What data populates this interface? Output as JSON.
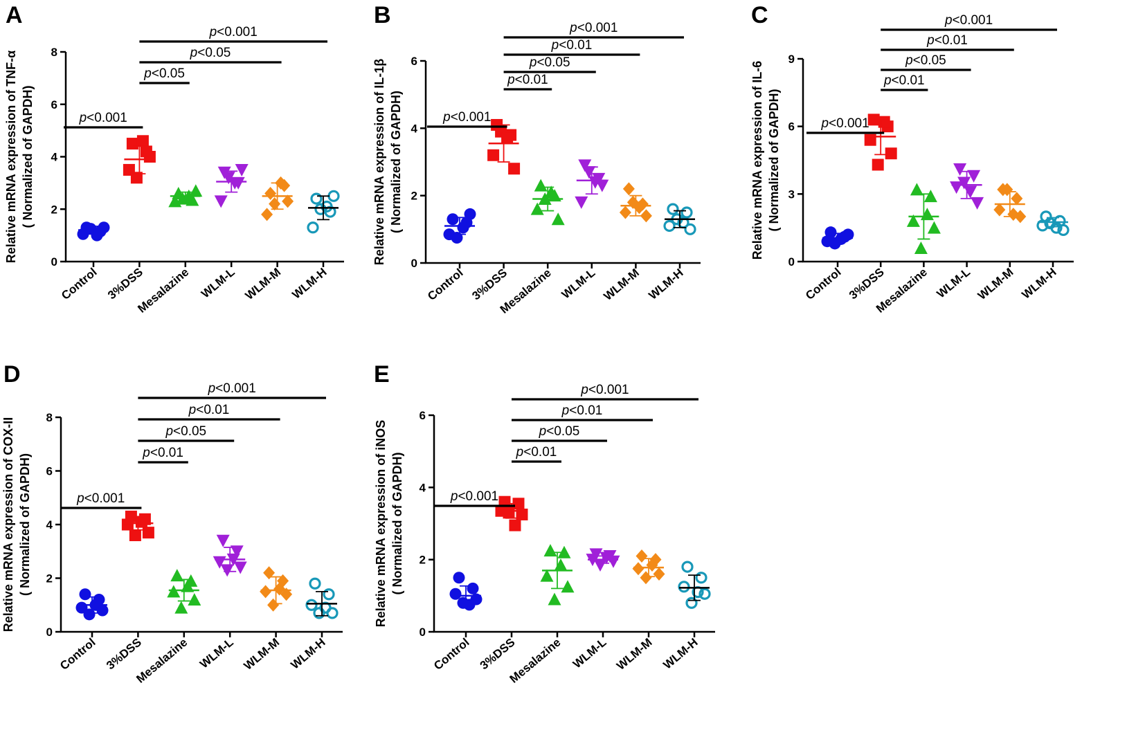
{
  "figure": {
    "groups": [
      "Control",
      "3%DSS",
      "Mesalazine",
      "WLM-L",
      "WLM-M",
      "WLM-H"
    ],
    "group_colors": [
      "#1010e0",
      "#ee1111",
      "#22bb22",
      "#a020d8",
      "#f28a18",
      "#1898b8"
    ],
    "group_markers": [
      "circle",
      "square",
      "triangle-up",
      "triangle-down",
      "diamond",
      "circle-open"
    ],
    "ylabel_suffix": "( Normalized of GAPDH)"
  },
  "chart_data": [
    {
      "type": "scatter",
      "panel_label": "A",
      "ylabel": "Relative mRNA expression of TNF-α",
      "categories": [
        "Control",
        "3%DSS",
        "Mesalazine",
        "WLM-L",
        "WLM-M",
        "WLM-H"
      ],
      "ylim": [
        0,
        8
      ],
      "yticks": [
        0,
        2,
        4,
        6,
        8
      ],
      "series": [
        {
          "name": "Control",
          "points": [
            1.3,
            1.15,
            1.05,
            1.3,
            1.25,
            1.0
          ],
          "mean": 1.2,
          "sd": 0.15
        },
        {
          "name": "3%DSS",
          "points": [
            4.5,
            4.2,
            3.5,
            4.0,
            3.2,
            4.6
          ],
          "mean": 3.9,
          "sd": 0.55
        },
        {
          "name": "Mesalazine",
          "points": [
            2.6,
            2.35,
            2.3,
            2.7,
            2.4,
            2.5
          ],
          "mean": 2.5,
          "sd": 0.15
        },
        {
          "name": "WLM-L",
          "points": [
            3.4,
            3.0,
            2.3,
            3.5,
            3.2,
            3.0
          ],
          "mean": 3.05,
          "sd": 0.4
        },
        {
          "name": "WLM-M",
          "points": [
            2.6,
            2.9,
            1.8,
            2.3,
            2.2,
            3.0
          ],
          "mean": 2.5,
          "sd": 0.5
        },
        {
          "name": "WLM-H",
          "points": [
            2.4,
            1.9,
            1.3,
            2.5,
            2.0,
            2.1
          ],
          "mean": 2.05,
          "sd": 0.45
        }
      ],
      "significance": [
        {
          "from": "Control",
          "to": "3%DSS",
          "label": "p<0.001"
        },
        {
          "from": "3%DSS",
          "to": "Mesalazine",
          "label": "p<0.05"
        },
        {
          "from": "3%DSS",
          "to": "WLM-M",
          "label": "p<0.05"
        },
        {
          "from": "3%DSS",
          "to": "WLM-H",
          "label": "p<0.001"
        }
      ]
    },
    {
      "type": "scatter",
      "panel_label": "B",
      "ylabel": "Relative mRNA expression of IL-1β",
      "categories": [
        "Control",
        "3%DSS",
        "Mesalazine",
        "WLM-L",
        "WLM-M",
        "WLM-H"
      ],
      "ylim": [
        0,
        6
      ],
      "yticks": [
        0,
        2,
        4,
        6
      ],
      "series": [
        {
          "name": "Control",
          "points": [
            1.3,
            1.2,
            0.85,
            1.45,
            0.75,
            1.05
          ],
          "mean": 1.1,
          "sd": 0.25
        },
        {
          "name": "3%DSS",
          "points": [
            4.1,
            3.8,
            3.2,
            2.8,
            3.9,
            3.7
          ],
          "mean": 3.55,
          "sd": 0.55
        },
        {
          "name": "Mesalazine",
          "points": [
            2.3,
            2.0,
            1.6,
            1.3,
            1.9,
            2.1
          ],
          "mean": 1.9,
          "sd": 0.35
        },
        {
          "name": "WLM-L",
          "points": [
            2.9,
            2.5,
            1.8,
            2.3,
            2.7,
            2.4
          ],
          "mean": 2.45,
          "sd": 0.4
        },
        {
          "name": "WLM-M",
          "points": [
            2.2,
            1.75,
            1.5,
            1.4,
            1.8,
            1.65
          ],
          "mean": 1.7,
          "sd": 0.3
        },
        {
          "name": "WLM-H",
          "points": [
            1.6,
            1.5,
            1.1,
            1.0,
            1.3,
            1.2
          ],
          "mean": 1.3,
          "sd": 0.25
        }
      ],
      "significance": [
        {
          "from": "Control",
          "to": "3%DSS",
          "label": "p<0.001"
        },
        {
          "from": "3%DSS",
          "to": "Mesalazine",
          "label": "p<0.01"
        },
        {
          "from": "3%DSS",
          "to": "WLM-L",
          "label": "p<0.05"
        },
        {
          "from": "3%DSS",
          "to": "WLM-M",
          "label": "p<0.01"
        },
        {
          "from": "3%DSS",
          "to": "WLM-H",
          "label": "p<0.001"
        }
      ]
    },
    {
      "type": "scatter",
      "panel_label": "C",
      "ylabel": "Relative mRNA expression of IL-6",
      "categories": [
        "Control",
        "3%DSS",
        "Mesalazine",
        "WLM-L",
        "WLM-M",
        "WLM-H"
      ],
      "ylim": [
        0,
        9
      ],
      "yticks": [
        0,
        3,
        6,
        9
      ],
      "series": [
        {
          "name": "Control",
          "points": [
            1.3,
            1.1,
            0.9,
            1.2,
            0.8,
            1.0
          ],
          "mean": 1.05,
          "sd": 0.2
        },
        {
          "name": "3%DSS",
          "points": [
            6.3,
            6.0,
            5.4,
            4.8,
            4.3,
            6.2
          ],
          "mean": 5.55,
          "sd": 0.8
        },
        {
          "name": "Mesalazine",
          "points": [
            3.2,
            2.9,
            1.8,
            1.5,
            0.6,
            2.1
          ],
          "mean": 2.0,
          "sd": 1.0
        },
        {
          "name": "WLM-L",
          "points": [
            4.1,
            3.8,
            3.3,
            2.6,
            3.5,
            3.1
          ],
          "mean": 3.4,
          "sd": 0.6
        },
        {
          "name": "WLM-M",
          "points": [
            3.2,
            2.8,
            2.3,
            2.0,
            3.2,
            2.1
          ],
          "mean": 2.55,
          "sd": 0.55
        },
        {
          "name": "WLM-H",
          "points": [
            2.0,
            1.8,
            1.6,
            1.4,
            1.7,
            1.5
          ],
          "mean": 1.75,
          "sd": 0.2
        }
      ],
      "significance": [
        {
          "from": "Control",
          "to": "3%DSS",
          "label": "p<0.001"
        },
        {
          "from": "3%DSS",
          "to": "Mesalazine",
          "label": "p<0.01"
        },
        {
          "from": "3%DSS",
          "to": "WLM-L",
          "label": "p<0.05"
        },
        {
          "from": "3%DSS",
          "to": "WLM-M",
          "label": "p<0.01"
        },
        {
          "from": "3%DSS",
          "to": "WLM-H",
          "label": "p<0.001"
        }
      ]
    },
    {
      "type": "scatter",
      "panel_label": "D",
      "ylabel": "Relative mRNA expression of COX-II",
      "categories": [
        "Control",
        "3%DSS",
        "Mesalazine",
        "WLM-L",
        "WLM-M",
        "WLM-H"
      ],
      "ylim": [
        0,
        8
      ],
      "yticks": [
        0,
        2,
        4,
        6,
        8
      ],
      "series": [
        {
          "name": "Control",
          "points": [
            1.4,
            1.2,
            0.9,
            0.8,
            0.65,
            1.0
          ],
          "mean": 1.0,
          "sd": 0.3
        },
        {
          "name": "3%DSS",
          "points": [
            4.3,
            4.2,
            4.0,
            3.7,
            3.6,
            4.1
          ],
          "mean": 4.05,
          "sd": 0.25
        },
        {
          "name": "Mesalazine",
          "points": [
            2.1,
            1.9,
            1.5,
            1.2,
            0.9,
            1.7
          ],
          "mean": 1.55,
          "sd": 0.4
        },
        {
          "name": "WLM-L",
          "points": [
            3.4,
            3.0,
            2.6,
            2.4,
            2.3,
            2.7
          ],
          "mean": 2.7,
          "sd": 0.45
        },
        {
          "name": "WLM-M",
          "points": [
            2.2,
            1.9,
            1.5,
            1.4,
            1.0,
            1.6
          ],
          "mean": 1.55,
          "sd": 0.5
        },
        {
          "name": "WLM-H",
          "points": [
            1.8,
            1.4,
            1.0,
            0.7,
            0.7,
            0.9
          ],
          "mean": 1.05,
          "sd": 0.45
        }
      ],
      "significance": [
        {
          "from": "Control",
          "to": "3%DSS",
          "label": "p<0.001"
        },
        {
          "from": "3%DSS",
          "to": "Mesalazine",
          "label": "p<0.01"
        },
        {
          "from": "3%DSS",
          "to": "WLM-L",
          "label": "p<0.05"
        },
        {
          "from": "3%DSS",
          "to": "WLM-M",
          "label": "p<0.01"
        },
        {
          "from": "3%DSS",
          "to": "WLM-H",
          "label": "p<0.001"
        }
      ]
    },
    {
      "type": "scatter",
      "panel_label": "E",
      "ylabel": "Relative mRNA expression of iNOS",
      "categories": [
        "Control",
        "3%DSS",
        "Mesalazine",
        "WLM-L",
        "WLM-M",
        "WLM-H"
      ],
      "ylim": [
        0,
        6
      ],
      "yticks": [
        0,
        2,
        4,
        6
      ],
      "series": [
        {
          "name": "Control",
          "points": [
            1.5,
            1.2,
            1.05,
            0.9,
            0.8,
            0.75
          ],
          "mean": 1.0,
          "sd": 0.27
        },
        {
          "name": "3%DSS",
          "points": [
            3.6,
            3.55,
            3.35,
            3.25,
            3.3,
            2.95
          ],
          "mean": 3.35,
          "sd": 0.2
        },
        {
          "name": "Mesalazine",
          "points": [
            2.25,
            2.2,
            1.55,
            1.25,
            0.9,
            1.85
          ],
          "mean": 1.7,
          "sd": 0.5
        },
        {
          "name": "WLM-L",
          "points": [
            2.15,
            2.1,
            2.0,
            1.95,
            1.85,
            2.05
          ],
          "mean": 2.0,
          "sd": 0.1
        },
        {
          "name": "WLM-M",
          "points": [
            2.1,
            2.0,
            1.75,
            1.6,
            1.5,
            1.85
          ],
          "mean": 1.78,
          "sd": 0.25
        },
        {
          "name": "WLM-H",
          "points": [
            1.8,
            1.5,
            1.25,
            1.05,
            0.8,
            1.1
          ],
          "mean": 1.22,
          "sd": 0.35
        }
      ],
      "significance": [
        {
          "from": "Control",
          "to": "3%DSS",
          "label": "p<0.001"
        },
        {
          "from": "3%DSS",
          "to": "Mesalazine",
          "label": "p<0.01"
        },
        {
          "from": "3%DSS",
          "to": "WLM-L",
          "label": "p<0.05"
        },
        {
          "from": "3%DSS",
          "to": "WLM-M",
          "label": "p<0.01"
        },
        {
          "from": "3%DSS",
          "to": "WLM-H",
          "label": "p<0.001"
        }
      ]
    }
  ]
}
